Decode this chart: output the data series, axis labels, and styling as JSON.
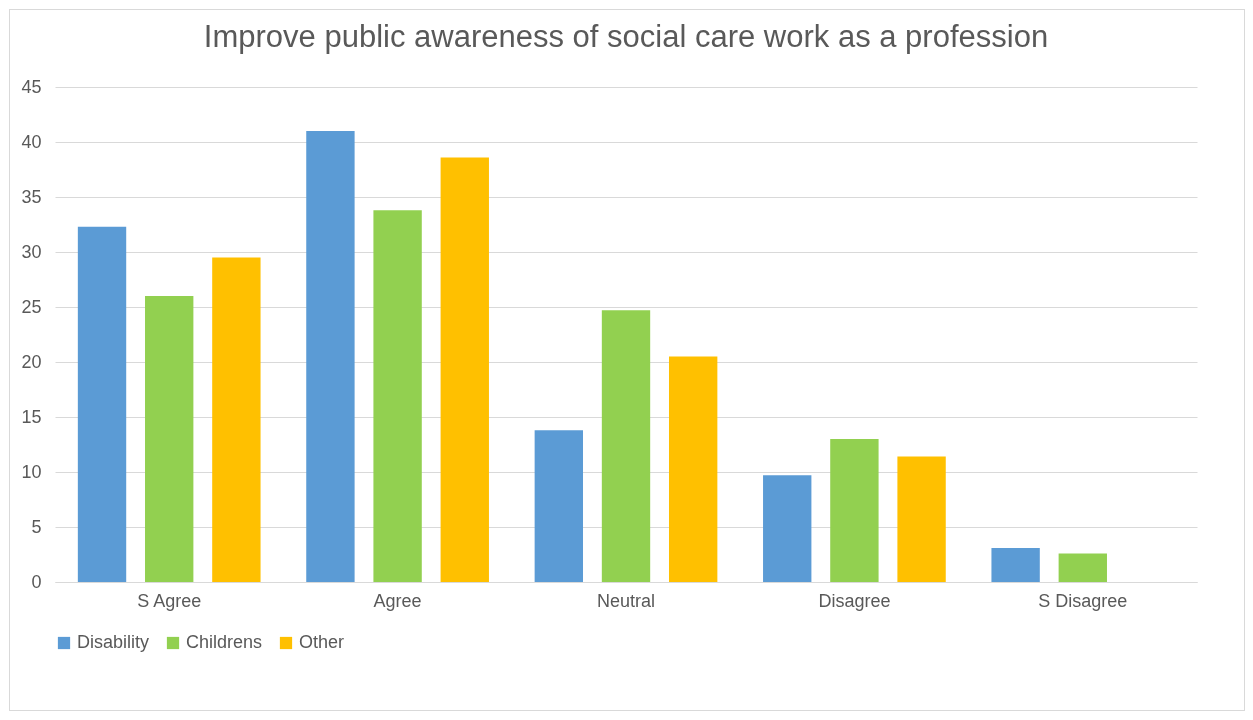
{
  "chart_data": {
    "type": "bar",
    "title": "Improve public awareness of social care work as a profession",
    "categories": [
      "S Agree",
      "Agree",
      "Neutral",
      "Disagree",
      "S Disagree"
    ],
    "series": [
      {
        "name": "Disability",
        "color": "#5b9bd5",
        "values": [
          32.3,
          41,
          13.8,
          9.7,
          3.1
        ]
      },
      {
        "name": "Childrens",
        "color": "#92d050",
        "values": [
          26,
          33.8,
          24.7,
          13,
          2.6
        ]
      },
      {
        "name": "Other",
        "color": "#ffc000",
        "values": [
          29.5,
          38.6,
          20.5,
          11.4,
          0
        ]
      }
    ],
    "ylim": [
      0,
      45
    ],
    "yticks": [
      0,
      5,
      10,
      15,
      20,
      25,
      30,
      35,
      40,
      45
    ],
    "grid": "y",
    "legend": "bottom"
  }
}
